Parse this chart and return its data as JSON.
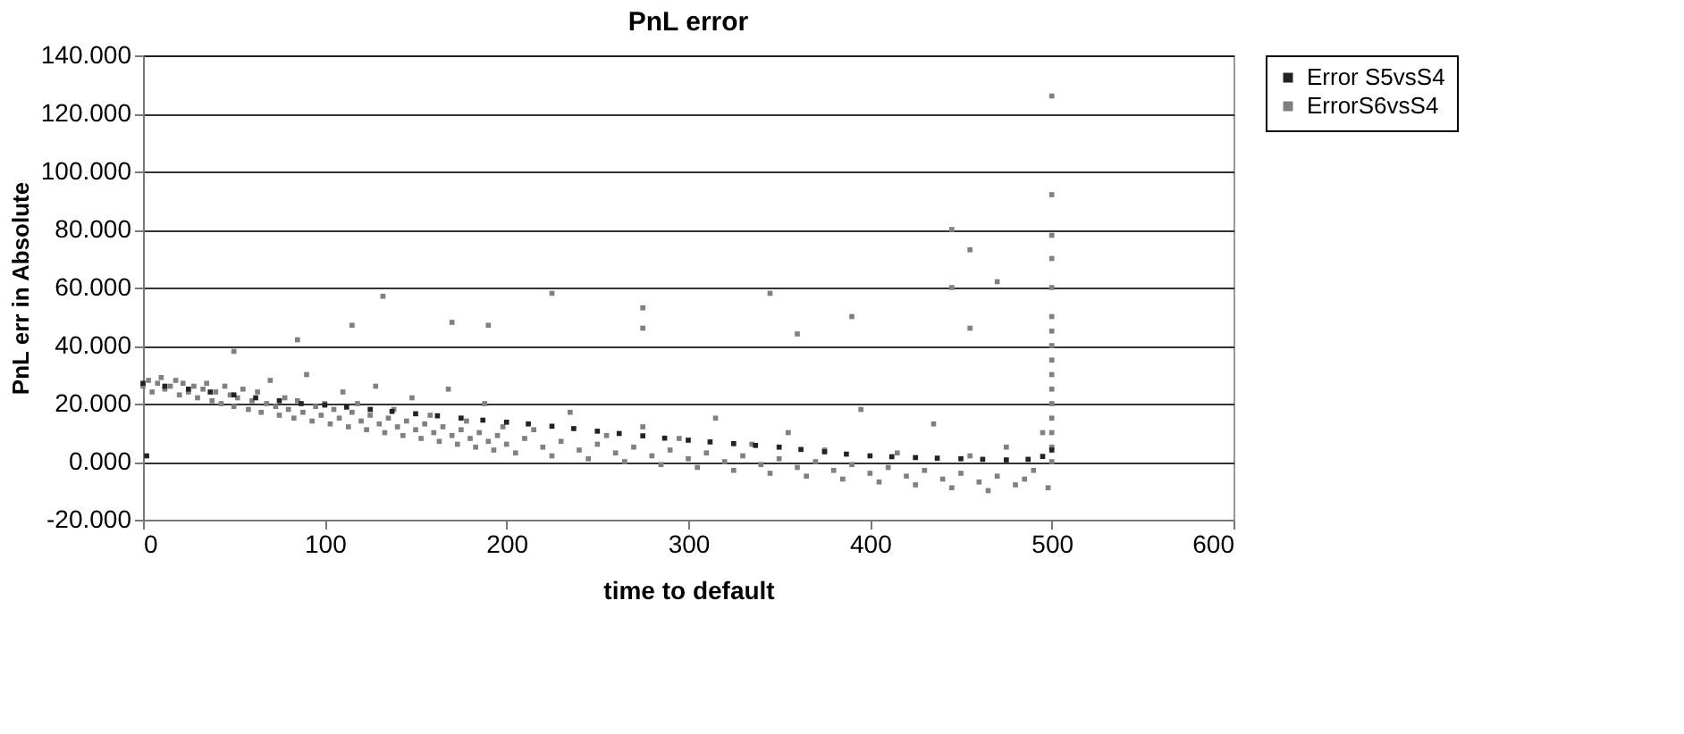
{
  "chart_data": {
    "type": "scatter",
    "title": "PnL error",
    "xlabel": "time to default",
    "ylabel": "PnL err in Absolute",
    "xlim": [
      0,
      600
    ],
    "xticks": [
      0,
      100,
      200,
      300,
      400,
      500,
      600
    ],
    "ylim": [
      -20,
      140
    ],
    "yticks": [
      {
        "value": -20,
        "label": "-20.000"
      },
      {
        "value": 0,
        "label": "0.000"
      },
      {
        "value": 20,
        "label": "20.000"
      },
      {
        "value": 40,
        "label": "40.000"
      },
      {
        "value": 60,
        "label": "60.000"
      },
      {
        "value": 80,
        "label": "80.000"
      },
      {
        "value": 100,
        "label": "100.000"
      },
      {
        "value": 120,
        "label": "120.000"
      },
      {
        "value": 140,
        "label": "140.000"
      }
    ],
    "grid": "y",
    "legend": "right",
    "marker": "square",
    "series": [
      {
        "name": "Error S5vsS4",
        "color": "#222222",
        "x": [
          2,
          0,
          12,
          25,
          37,
          50,
          62,
          75,
          87,
          100,
          112,
          125,
          137,
          150,
          162,
          175,
          187,
          200,
          212,
          225,
          237,
          250,
          262,
          275,
          287,
          300,
          312,
          325,
          337,
          350,
          362,
          375,
          387,
          400,
          412,
          425,
          437,
          450,
          462,
          475,
          487,
          495,
          500
        ],
        "values": [
          2,
          27,
          26,
          25,
          24,
          23,
          22,
          21,
          20,
          19.5,
          18.8,
          18,
          17.3,
          16.5,
          15.8,
          15,
          14.3,
          13.6,
          13,
          12.2,
          11.4,
          10.5,
          9.7,
          8.9,
          8.1,
          7.4,
          6.8,
          6.2,
          5.6,
          5,
          4.2,
          3.4,
          2.6,
          2,
          1.7,
          1.4,
          1.2,
          1,
          0.8,
          0.6,
          0.8,
          1.8,
          4
        ]
      },
      {
        "name": "ErrorS6vsS4",
        "color": "#808080",
        "x": [
          0,
          3,
          5,
          8,
          10,
          12,
          15,
          18,
          20,
          22,
          25,
          28,
          30,
          33,
          35,
          38,
          40,
          43,
          45,
          48,
          50,
          52,
          55,
          58,
          60,
          63,
          65,
          68,
          70,
          73,
          75,
          78,
          80,
          83,
          85,
          88,
          90,
          93,
          95,
          98,
          100,
          103,
          105,
          108,
          110,
          113,
          115,
          118,
          120,
          123,
          125,
          128,
          130,
          133,
          135,
          138,
          140,
          143,
          145,
          148,
          150,
          153,
          155,
          158,
          160,
          163,
          165,
          168,
          170,
          173,
          175,
          178,
          180,
          183,
          185,
          188,
          190,
          193,
          195,
          198,
          200,
          205,
          210,
          215,
          220,
          225,
          230,
          235,
          240,
          245,
          250,
          255,
          260,
          265,
          270,
          275,
          280,
          285,
          290,
          295,
          300,
          305,
          310,
          315,
          320,
          325,
          330,
          335,
          340,
          345,
          350,
          355,
          360,
          365,
          370,
          375,
          380,
          385,
          390,
          395,
          400,
          405,
          410,
          415,
          420,
          425,
          430,
          435,
          440,
          445,
          450,
          455,
          460,
          465,
          470,
          475,
          480,
          485,
          490,
          495,
          498,
          132,
          225,
          275,
          275,
          170,
          190,
          115,
          85,
          50,
          345,
          360,
          390,
          445,
          455,
          470,
          445,
          455,
          500,
          500,
          500,
          500,
          500,
          500,
          500,
          500,
          500,
          500,
          500,
          500,
          500,
          500,
          500,
          500
        ],
        "values": [
          26,
          28,
          24,
          27,
          29,
          25,
          26,
          28,
          23,
          27,
          24,
          26,
          22,
          25,
          27,
          21,
          24,
          20,
          26,
          23,
          19,
          22,
          25,
          18,
          21,
          24,
          17,
          20,
          28,
          19,
          16,
          22,
          18,
          15,
          21,
          17,
          30,
          14,
          19,
          16,
          20,
          13,
          18,
          15,
          24,
          12,
          17,
          20,
          14,
          11,
          16,
          26,
          13,
          10,
          15,
          18,
          12,
          9,
          14,
          22,
          11,
          8,
          13,
          16,
          10,
          7,
          12,
          25,
          9,
          6,
          11,
          14,
          8,
          5,
          10,
          20,
          7,
          4,
          9,
          12,
          6,
          3,
          8,
          11,
          5,
          2,
          7,
          17,
          4,
          1,
          6,
          9,
          3,
          0,
          5,
          12,
          2,
          -1,
          4,
          8,
          1,
          -2,
          3,
          15,
          0,
          -3,
          2,
          6,
          -1,
          -4,
          1,
          10,
          -2,
          -5,
          0,
          4,
          -3,
          -6,
          -1,
          18,
          -4,
          -7,
          -2,
          3,
          -5,
          -8,
          -3,
          13,
          -6,
          -9,
          -4,
          2,
          -7,
          -10,
          -5,
          5,
          -8,
          -6,
          -3,
          10,
          -9,
          57,
          58,
          53,
          46,
          48,
          47,
          47,
          42,
          38,
          58,
          44,
          50,
          80,
          73,
          62,
          60,
          46,
          0,
          5,
          10,
          15,
          20,
          25,
          30,
          35,
          40,
          45,
          50,
          60,
          70,
          78,
          92,
          126
        ]
      }
    ]
  }
}
